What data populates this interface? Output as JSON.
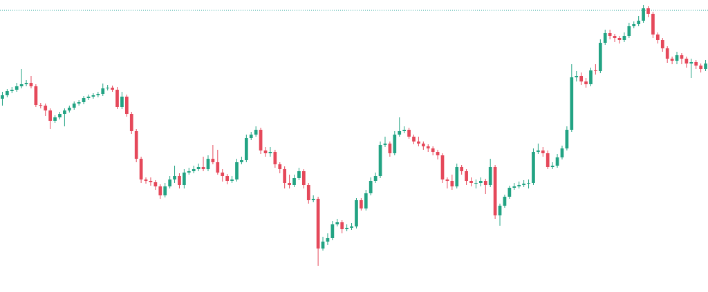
{
  "chart_data": {
    "type": "candlestick",
    "up_color": "#22a383",
    "down_color": "#e5485a",
    "ylim": [
      0,
      423
    ],
    "price_line": {
      "value": 408,
      "color": "#26a69a"
    },
    "open": [
      280,
      285,
      291,
      293,
      298,
      301,
      303,
      298,
      271,
      270,
      263,
      248,
      253,
      258,
      263,
      267,
      273,
      275,
      281,
      283,
      285,
      287,
      295,
      296,
      293,
      268,
      283,
      258,
      233,
      193,
      163,
      161,
      159,
      153,
      140,
      153,
      163,
      168,
      155,
      173,
      175,
      178,
      181,
      178,
      193,
      188,
      173,
      168,
      161,
      163,
      188,
      191,
      223,
      228,
      235,
      205,
      201,
      203,
      185,
      178,
      158,
      155,
      165,
      175,
      155,
      133,
      135,
      63,
      73,
      78,
      98,
      101,
      91,
      93,
      95,
      133,
      121,
      143,
      161,
      168,
      213,
      215,
      201,
      228,
      233,
      235,
      225,
      218,
      215,
      211,
      208,
      203,
      198,
      163,
      161,
      153,
      181,
      175,
      161,
      158,
      158,
      161,
      155,
      181,
      111,
      125,
      138,
      151,
      153,
      155,
      157,
      158,
      203,
      205,
      201,
      181,
      183,
      195,
      208,
      235,
      311,
      313,
      305,
      301,
      321,
      320,
      361,
      375,
      371,
      368,
      365,
      371,
      385,
      388,
      393,
      411,
      403,
      373,
      365,
      353,
      338,
      335,
      343,
      338,
      331,
      333,
      328,
      323
    ],
    "high": [
      290,
      294,
      297,
      303,
      323,
      307,
      313,
      301,
      274,
      273,
      266,
      256,
      261,
      266,
      270,
      276,
      278,
      284,
      286,
      288,
      290,
      302,
      300,
      299,
      297,
      290,
      286,
      261,
      236,
      196,
      166,
      166,
      162,
      156,
      158,
      168,
      183,
      172,
      178,
      180,
      183,
      186,
      196,
      198,
      213,
      206,
      178,
      171,
      168,
      193,
      196,
      228,
      232,
      240,
      238,
      210,
      210,
      206,
      188,
      182,
      170,
      170,
      180,
      178,
      158,
      140,
      138,
      80,
      85,
      103,
      106,
      104,
      98,
      100,
      136,
      136,
      148,
      166,
      173,
      218,
      225,
      218,
      233,
      253,
      240,
      238,
      228,
      225,
      218,
      214,
      211,
      206,
      201,
      166,
      170,
      186,
      184,
      178,
      166,
      163,
      166,
      164,
      193,
      184,
      128,
      141,
      154,
      158,
      160,
      162,
      163,
      208,
      215,
      210,
      205,
      188,
      200,
      212,
      240,
      330,
      320,
      318,
      310,
      325,
      330,
      366,
      380,
      380,
      374,
      371,
      376,
      390,
      392,
      400,
      416,
      414,
      406,
      376,
      368,
      356,
      341,
      348,
      346,
      341,
      338,
      336,
      331,
      336
    ],
    "low": [
      270,
      282,
      288,
      290,
      295,
      298,
      295,
      268,
      266,
      255,
      236,
      245,
      250,
      240,
      260,
      264,
      270,
      272,
      278,
      280,
      282,
      284,
      292,
      290,
      265,
      265,
      254,
      229,
      188,
      158,
      157,
      154,
      148,
      135,
      137,
      150,
      158,
      150,
      150,
      170,
      172,
      175,
      175,
      175,
      185,
      170,
      160,
      156,
      158,
      160,
      185,
      188,
      220,
      225,
      200,
      196,
      196,
      180,
      172,
      150,
      150,
      152,
      162,
      150,
      128,
      130,
      38,
      60,
      68,
      75,
      95,
      85,
      88,
      90,
      92,
      118,
      118,
      140,
      158,
      165,
      210,
      196,
      198,
      225,
      230,
      222,
      214,
      211,
      206,
      203,
      198,
      192,
      158,
      150,
      148,
      150,
      170,
      155,
      153,
      150,
      153,
      142,
      152,
      106,
      96,
      122,
      135,
      148,
      150,
      152,
      150,
      155,
      200,
      196,
      178,
      178,
      180,
      192,
      205,
      232,
      305,
      300,
      296,
      298,
      315,
      317,
      358,
      366,
      362,
      360,
      362,
      368,
      382,
      385,
      390,
      398,
      368,
      360,
      348,
      332,
      330,
      330,
      330,
      325,
      310,
      323,
      318,
      320
    ],
    "close": [
      285,
      291,
      293,
      298,
      301,
      303,
      298,
      271,
      270,
      263,
      248,
      253,
      258,
      263,
      267,
      273,
      275,
      281,
      283,
      285,
      287,
      295,
      296,
      293,
      268,
      283,
      258,
      233,
      193,
      163,
      161,
      159,
      153,
      140,
      153,
      163,
      168,
      155,
      173,
      175,
      178,
      181,
      178,
      193,
      188,
      173,
      168,
      161,
      163,
      188,
      191,
      223,
      228,
      235,
      205,
      201,
      203,
      185,
      178,
      158,
      155,
      165,
      175,
      155,
      133,
      135,
      63,
      73,
      78,
      98,
      101,
      91,
      93,
      95,
      133,
      121,
      143,
      161,
      168,
      213,
      215,
      201,
      228,
      233,
      235,
      225,
      218,
      215,
      211,
      208,
      203,
      198,
      163,
      161,
      153,
      181,
      175,
      161,
      158,
      158,
      161,
      155,
      181,
      111,
      125,
      138,
      151,
      153,
      155,
      157,
      158,
      203,
      205,
      201,
      181,
      183,
      195,
      208,
      235,
      311,
      313,
      305,
      301,
      321,
      320,
      361,
      375,
      371,
      368,
      365,
      371,
      385,
      388,
      393,
      411,
      403,
      373,
      365,
      353,
      338,
      335,
      343,
      338,
      331,
      333,
      328,
      323,
      331
    ]
  }
}
